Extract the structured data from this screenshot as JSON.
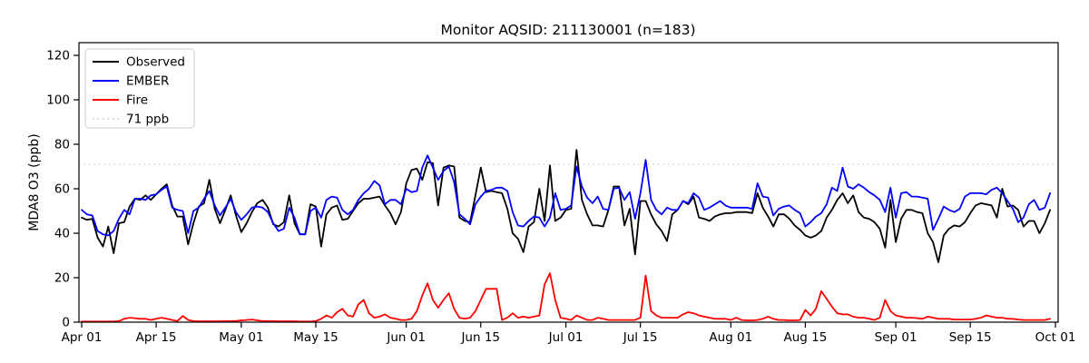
{
  "title": "Monitor AQSID: 211130001 (n=183)",
  "chart_data": {
    "type": "line",
    "title": "Monitor AQSID: 211130001 (n=183)",
    "xlabel": "",
    "ylabel": "MDA8 O3 (ppb)",
    "ylim": [
      0,
      125
    ],
    "yticks": [
      0,
      20,
      40,
      60,
      80,
      100,
      120
    ],
    "x_tick_labels": [
      "Apr 01",
      "Apr 15",
      "May 01",
      "May 15",
      "Jun 01",
      "Jun 15",
      "Jul 01",
      "Jul 15",
      "Aug 01",
      "Aug 15",
      "Sep 01",
      "Sep 15",
      "Oct 01"
    ],
    "x_tick_days": [
      0,
      14,
      30,
      44,
      61,
      75,
      91,
      105,
      122,
      136,
      153,
      167,
      183
    ],
    "n_points": 183,
    "x_range": "daily values from Apr 01 through Sep 30",
    "grid": false,
    "legend_position": "upper left",
    "threshold": {
      "label": "71 ppb",
      "value": 71,
      "color": "#d3d3d3"
    },
    "series": [
      {
        "name": "Observed",
        "color": "#000000",
        "values": [
          47,
          46,
          46.5,
          38,
          34,
          43,
          31,
          44.5,
          45,
          52,
          55.5,
          55,
          57,
          55,
          57.5,
          60,
          62,
          52.5,
          47.5,
          47.5,
          35,
          44.5,
          52,
          53.5,
          64,
          51,
          44.5,
          50.5,
          57,
          48,
          40.5,
          44.5,
          49.5,
          53.5,
          55,
          51.5,
          44,
          43,
          45,
          57,
          44.5,
          39.5,
          39.5,
          53,
          52,
          34,
          48.5,
          51.5,
          52.5,
          46,
          46.5,
          50,
          53.5,
          55.5,
          55.5,
          56,
          56.5,
          52.5,
          49,
          44,
          49.5,
          62.5,
          68.5,
          69,
          64,
          72,
          71.5,
          52.5,
          69.5,
          70.5,
          70,
          47,
          45.5,
          45,
          57,
          69.5,
          58.5,
          59,
          58.5,
          58,
          51,
          40,
          37.5,
          31.5,
          43,
          45,
          60,
          45.5,
          70.5,
          45.5,
          47,
          50.5,
          51,
          77.5,
          55,
          48.5,
          43.5,
          43.5,
          43,
          50.5,
          61,
          61,
          43.5,
          51,
          30.5,
          54.5,
          54.5,
          48.5,
          44,
          41,
          36.5,
          48.5,
          50.5,
          54.5,
          53,
          56.5,
          47,
          46.5,
          45.5,
          47.5,
          48.5,
          49,
          49,
          49.5,
          49.5,
          49.5,
          49,
          58,
          51.5,
          47.5,
          43,
          48.5,
          48.5,
          46.5,
          43.5,
          41.5,
          39,
          38,
          39,
          41,
          47,
          50.5,
          55,
          58,
          53.5,
          57,
          49.5,
          47,
          46.5,
          45,
          42,
          33.5,
          55,
          36,
          46.5,
          50.5,
          50.5,
          49.5,
          49,
          40,
          36,
          27,
          39,
          42,
          43.5,
          43,
          45,
          49,
          52.5,
          53.5,
          53,
          52.5,
          47,
          60,
          52,
          52.5,
          50.5,
          43,
          45.5,
          45.5,
          40,
          44.5,
          50.5
        ]
      },
      {
        "name": "EMBER",
        "color": "#0000ff",
        "values": [
          50.5,
          48.5,
          48,
          41,
          39.5,
          39,
          41,
          46.5,
          50.5,
          48.5,
          55.5,
          55.5,
          55,
          57,
          57.5,
          59.5,
          61,
          51.5,
          50.5,
          50,
          40,
          50,
          51.5,
          55.5,
          59,
          52.5,
          48,
          51.5,
          55.5,
          49.5,
          46,
          48.5,
          51.5,
          52,
          51.5,
          49.5,
          44.5,
          41,
          42,
          51.5,
          47,
          39.5,
          39.5,
          50,
          51.5,
          47,
          55,
          56.5,
          56,
          50.5,
          48.5,
          50.5,
          55,
          58,
          60,
          63.5,
          61.5,
          53,
          55,
          55,
          53,
          60,
          58.5,
          59,
          69.5,
          75,
          69.5,
          64,
          68,
          70,
          63,
          48.5,
          46.5,
          44,
          53,
          56.5,
          59,
          59.5,
          60.5,
          60.5,
          59,
          49.5,
          43.5,
          43,
          45.5,
          47.5,
          47,
          43,
          47,
          58,
          50.5,
          51,
          52.5,
          70,
          61,
          56,
          53.5,
          56.5,
          51,
          50.5,
          60,
          60.5,
          55,
          58.5,
          46.5,
          58,
          73,
          55,
          50.5,
          48.5,
          51.5,
          50.5,
          50.5,
          54.5,
          53.5,
          58,
          56,
          50.5,
          51.5,
          53,
          54.5,
          52.5,
          51.5,
          51.5,
          51.5,
          51.5,
          51,
          62.5,
          56.5,
          56,
          48,
          51,
          52,
          52.5,
          50.5,
          49,
          43,
          45,
          47.5,
          49,
          53,
          60.5,
          59,
          69.5,
          61,
          60,
          62,
          60.5,
          58.5,
          57,
          55,
          49.5,
          60.5,
          47,
          58,
          58.5,
          56.5,
          56.5,
          56,
          55.5,
          41.5,
          46.5,
          52,
          50.5,
          49.5,
          51,
          56.5,
          58,
          58,
          58,
          57.5,
          59.5,
          60.5,
          58,
          54.5,
          51,
          45,
          47,
          53,
          55,
          50.5,
          51.5,
          58
        ]
      },
      {
        "name": "Fire",
        "color": "#ff0000",
        "values": [
          0.3,
          0.3,
          0.3,
          0.3,
          0.3,
          0.3,
          0.3,
          0.5,
          1.5,
          2,
          1.8,
          1.5,
          1.5,
          1,
          1.5,
          2,
          1.5,
          1,
          0.5,
          2.8,
          1,
          0.5,
          0.4,
          0.4,
          0.4,
          0.4,
          0.4,
          0.5,
          0.5,
          0.5,
          0.8,
          1,
          1.2,
          0.8,
          0.5,
          0.5,
          0.5,
          0.4,
          0.4,
          0.4,
          0.4,
          0.3,
          0.3,
          0.3,
          0.5,
          1.5,
          3,
          2,
          4.5,
          6,
          3,
          2.5,
          8,
          10,
          4,
          2,
          2.5,
          3.5,
          2,
          1.5,
          1,
          1,
          1.5,
          5,
          12,
          17.5,
          10,
          6.5,
          10,
          13,
          6,
          2,
          1.5,
          2,
          5,
          10,
          15,
          15,
          15,
          1,
          2,
          4,
          2,
          2.5,
          2,
          2.5,
          3,
          17,
          22,
          10,
          2,
          1.5,
          1,
          3,
          2,
          1,
          1,
          2,
          1.5,
          1,
          1,
          1,
          1,
          1,
          1,
          2,
          21,
          5,
          3,
          2,
          2,
          2,
          2,
          3.5,
          4.5,
          4,
          3,
          2.5,
          2,
          1.5,
          1.5,
          1.5,
          1,
          2,
          1,
          0.8,
          0.8,
          1,
          1.5,
          2.5,
          1.5,
          1,
          1,
          0.8,
          0.8,
          1,
          5.5,
          3,
          6,
          14,
          10.5,
          7,
          4,
          3.5,
          3.5,
          2.5,
          2,
          2,
          1.5,
          1,
          2,
          10,
          5,
          3,
          2.5,
          2,
          2,
          1.8,
          1.5,
          2.5,
          2,
          1.5,
          1.5,
          1.5,
          1.2,
          1.2,
          1.2,
          1.2,
          1.5,
          2,
          3,
          2.5,
          2,
          2,
          1.5,
          1.5,
          1.2,
          1,
          1,
          1,
          1,
          1,
          1.5
        ]
      }
    ],
    "legend_entries": [
      "Observed",
      "EMBER",
      "Fire",
      "71 ppb"
    ]
  },
  "colors": {
    "observed": "#000000",
    "ember": "#0000ff",
    "fire": "#ff0000",
    "threshold": "#d3d3d3",
    "axis": "#000000",
    "legend_border": "#cccccc",
    "background": "#ffffff"
  }
}
